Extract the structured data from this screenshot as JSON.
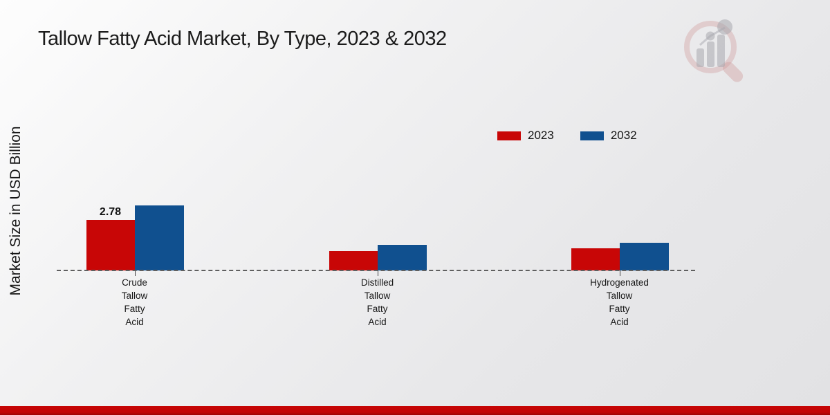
{
  "page": {
    "title": "Tallow Fatty Acid Market, By Type, 2023 & 2032",
    "watermark_icon": "magnifier-bar-chart-logo",
    "footer_color": "#c40404"
  },
  "chart_data": {
    "type": "bar",
    "title": "Tallow Fatty Acid Market, By Type, 2023 & 2032",
    "xlabel": "",
    "ylabel": "Market Size in USD Billion",
    "categories": [
      "Crude Tallow Fatty Acid",
      "Distilled Tallow Fatty Acid",
      "Hydrogenated Tallow Fatty Acid"
    ],
    "category_lines": [
      [
        "Crude",
        "Tallow",
        "Fatty",
        "Acid"
      ],
      [
        "Distilled",
        "Tallow",
        "Fatty",
        "Acid"
      ],
      [
        "Hydrogenated",
        "Tallow",
        "Fatty",
        "Acid"
      ]
    ],
    "series": [
      {
        "name": "2023",
        "color": "#c80606",
        "values": [
          2.78,
          1.07,
          1.22
        ]
      },
      {
        "name": "2032",
        "color": "#10508f",
        "values": [
          3.58,
          1.41,
          1.52
        ]
      }
    ],
    "value_labels": [
      {
        "series_index": 0,
        "category_index": 0,
        "text": "2.78"
      }
    ],
    "legend_position": "top-right",
    "grid": false,
    "baseline_style": "dashed",
    "ylim": [
      0,
      4
    ]
  },
  "legend": {
    "items": [
      {
        "label": "2023",
        "color": "#c80606"
      },
      {
        "label": "2032",
        "color": "#10508f"
      }
    ]
  },
  "colors": {
    "bar_2023": "#c80606",
    "bar_2032": "#10508f",
    "footer_strip": "#c40404",
    "axis_dash": "#5f5f5f"
  }
}
